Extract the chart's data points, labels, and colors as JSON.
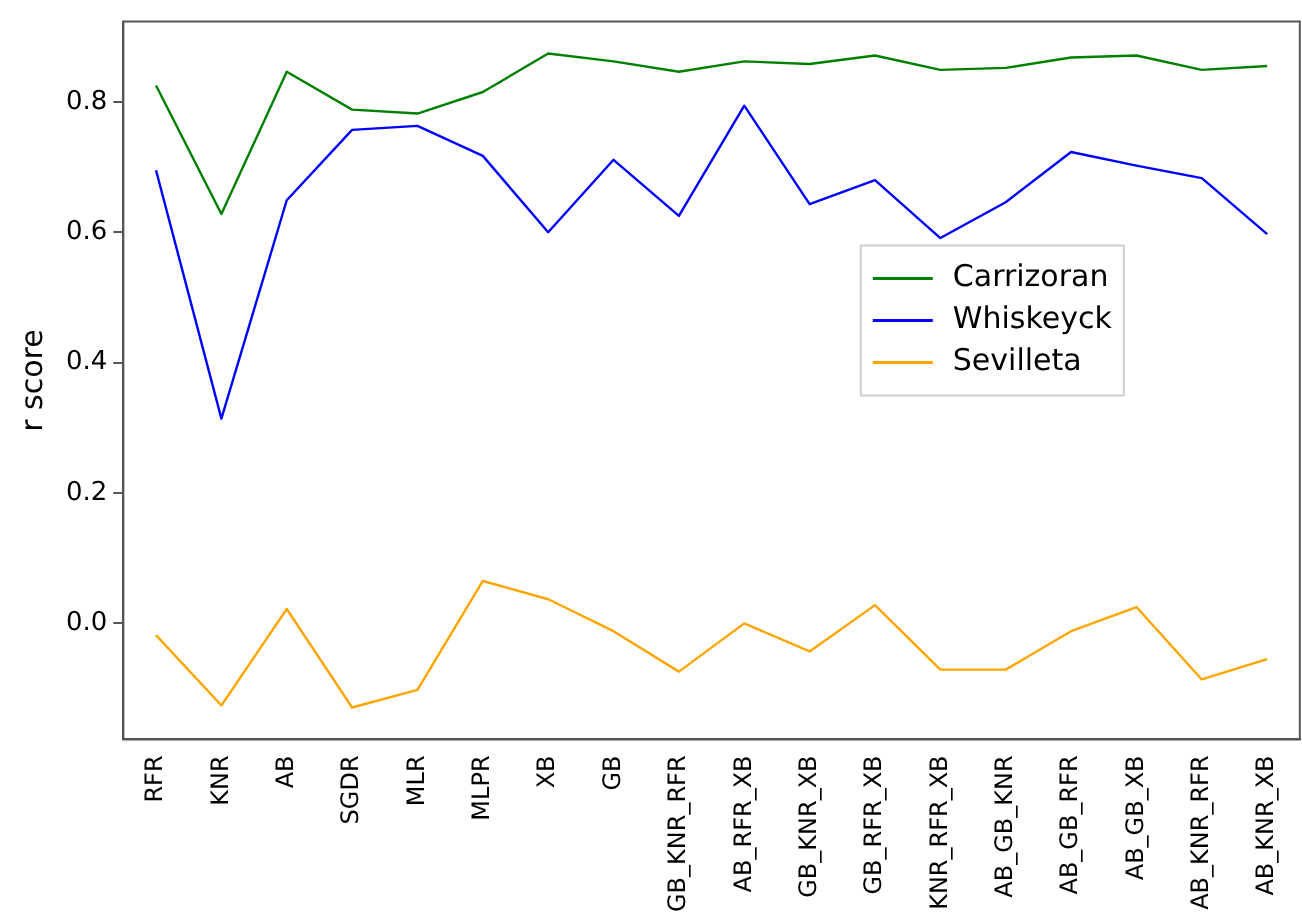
{
  "chart_data": {
    "type": "line",
    "ylabel": "r score",
    "categories": [
      "RFR",
      "KNR",
      "AB",
      "SGDR",
      "MLR",
      "MLPR",
      "XB",
      "GB",
      "GB_KNR_RFR",
      "AB_RFR_XB",
      "GB_KNR_XB",
      "GB_RFR_XB",
      "KNR_RFR_XB",
      "AB_GB_KNR",
      "AB_GB_RFR",
      "AB_GB_XB",
      "AB_KNR_RFR",
      "AB_KNR_XB"
    ],
    "series": [
      {
        "name": "Carrizoran",
        "color": "#008000",
        "values": [
          0.825,
          0.628,
          0.846,
          0.788,
          0.782,
          0.815,
          0.874,
          0.862,
          0.846,
          0.862,
          0.858,
          0.871,
          0.849,
          0.852,
          0.868,
          0.871,
          0.849,
          0.855
        ]
      },
      {
        "name": "Whiskeyck",
        "color": "#0000ff",
        "values": [
          0.695,
          0.314,
          0.649,
          0.757,
          0.763,
          0.717,
          0.6,
          0.711,
          0.625,
          0.794,
          0.643,
          0.68,
          0.591,
          0.646,
          0.723,
          0.702,
          0.683,
          0.597
        ]
      },
      {
        "name": "Sevilleta",
        "color": "#ffa500",
        "values": [
          -0.018,
          -0.126,
          0.022,
          -0.129,
          -0.102,
          0.065,
          0.037,
          -0.012,
          -0.074,
          0.0,
          -0.043,
          0.028,
          -0.071,
          -0.071,
          -0.012,
          0.025,
          -0.086,
          -0.055
        ]
      }
    ],
    "ylim": [
      -0.178,
      0.923
    ],
    "yticks": [
      {
        "value": 0,
        "label": "0.0"
      },
      {
        "value": 0.2,
        "label": "0.2"
      },
      {
        "value": 0.4,
        "label": "0.4"
      },
      {
        "value": 0.6,
        "label": "0.6"
      },
      {
        "value": 0.8,
        "label": "0.8"
      }
    ],
    "grid": false,
    "legend": "right",
    "marker": "none",
    "line_style": "solid"
  }
}
